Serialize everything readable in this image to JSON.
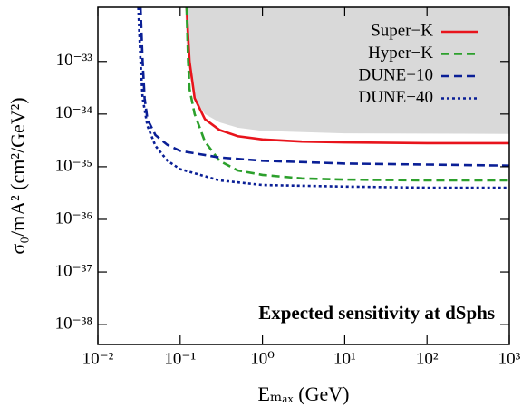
{
  "chart_data": {
    "type": "line",
    "xlabel": "Eₘₐₓ (GeV)",
    "ylabel": "σ₀/mA² (cm²/GeV²)",
    "annotation": "Expected sensitivity at dSphs",
    "xscale": "log",
    "yscale": "log",
    "xlim": [
      0.01,
      1000
    ],
    "ylim": [
      4.2e-39,
      1.07e-32
    ],
    "xticks": [
      {
        "value": 0.01,
        "label": "10⁻²"
      },
      {
        "value": 0.1,
        "label": "10⁻¹"
      },
      {
        "value": 1,
        "label": "10⁰"
      },
      {
        "value": 10,
        "label": "10¹"
      },
      {
        "value": 100,
        "label": "10²"
      },
      {
        "value": 1000,
        "label": "10³"
      }
    ],
    "yticks": [
      {
        "value": 1e-38,
        "label": "10⁻³⁸"
      },
      {
        "value": 1e-37,
        "label": "10⁻³⁷"
      },
      {
        "value": 1e-36,
        "label": "10⁻³⁶"
      },
      {
        "value": 1e-35,
        "label": "10⁻³⁵"
      },
      {
        "value": 1e-34,
        "label": "10⁻³⁴"
      },
      {
        "value": 1e-33,
        "label": "10⁻³³"
      }
    ],
    "legend": "upper right",
    "shaded_region": {
      "color": "#d9d9d9",
      "x": [
        0.115,
        0.12,
        0.13,
        0.15,
        0.2,
        0.3,
        0.5,
        1,
        10,
        1000
      ],
      "values": [
        1.07e-32,
        2e-33,
        6e-34,
        2e-34,
        1e-34,
        7e-35,
        5.5e-35,
        4.8e-35,
        4.3e-35,
        4.2e-35
      ]
    },
    "series": [
      {
        "name": "Super−K",
        "color": "#e8141c",
        "dash": "solid",
        "x": [
          0.12,
          0.125,
          0.13,
          0.15,
          0.2,
          0.3,
          0.5,
          1,
          3,
          10,
          100,
          1000
        ],
        "values": [
          1.07e-32,
          3e-33,
          1e-33,
          2e-34,
          8e-35,
          5e-35,
          3.8e-35,
          3.3e-35,
          3e-35,
          2.9e-35,
          2.8e-35,
          2.8e-35
        ]
      },
      {
        "name": "Hyper−K",
        "color": "#2ca02c",
        "dash": "dashed",
        "x": [
          0.12,
          0.125,
          0.13,
          0.15,
          0.2,
          0.3,
          0.5,
          1,
          3,
          10,
          100,
          1000
        ],
        "values": [
          1.07e-32,
          1e-33,
          3e-34,
          1e-34,
          3e-35,
          1.3e-35,
          8.5e-36,
          7e-36,
          6e-36,
          5.7e-36,
          5.5e-36,
          5.5e-36
        ]
      },
      {
        "name": "DUNE−10",
        "color": "#0a1f96",
        "dash": "dashed",
        "x": [
          0.033,
          0.035,
          0.037,
          0.04,
          0.05,
          0.07,
          0.1,
          0.3,
          1,
          10,
          100,
          1000
        ],
        "values": [
          1.07e-32,
          1e-33,
          2e-34,
          8e-35,
          4e-35,
          2.6e-35,
          2e-35,
          1.5e-35,
          1.3e-35,
          1.15e-35,
          1.1e-35,
          1.05e-35
        ]
      },
      {
        "name": "DUNE−40",
        "color": "#0a1f96",
        "dash": "dotted",
        "x": [
          0.031,
          0.033,
          0.035,
          0.04,
          0.05,
          0.07,
          0.1,
          0.3,
          1,
          10,
          100,
          1000
        ],
        "values": [
          1.07e-32,
          1e-33,
          2e-34,
          6e-35,
          2.5e-35,
          1.3e-35,
          9e-36,
          5.5e-36,
          4.5e-36,
          4.2e-36,
          4e-36,
          4e-36
        ]
      }
    ]
  }
}
